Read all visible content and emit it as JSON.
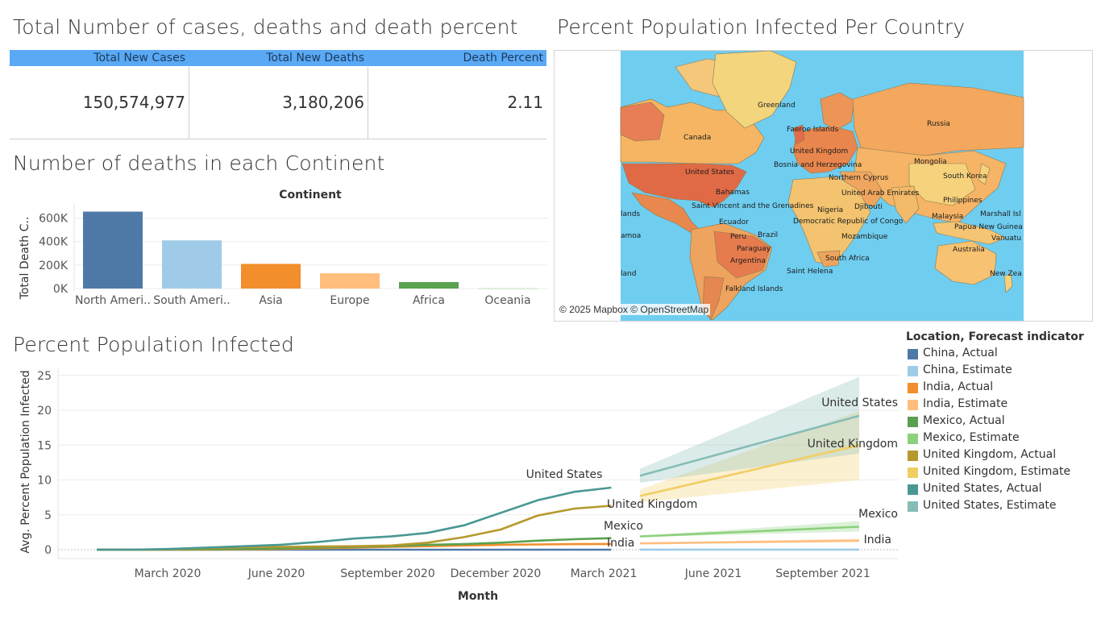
{
  "kpi": {
    "title": "Total Number of cases, deaths and death percent",
    "headers": [
      "Total New Cases",
      "Total New Deaths",
      "Death Percent"
    ],
    "values": [
      "150,574,977",
      "3,180,206",
      "2.11"
    ],
    "header_color": "#5aa9f5"
  },
  "map": {
    "title": "Percent Population Infected Per Country",
    "credit": "© 2025 Mapbox © OpenStreetMap",
    "ocean_color": "#6fcdf0",
    "labels": [
      "Greenland",
      "Russia",
      "Faeroe Islands",
      "Canada",
      "United Kingdom",
      "Mongolia",
      "Bosnia and Herzegovina",
      "United States",
      "Northern Cyprus",
      "South Korea",
      "Bahamas",
      "United Arab Emirates",
      "Philippines",
      "Saint Vincent and the Grenadines",
      "Nigeria",
      "Djibouti",
      "lands",
      "Marshall Isl",
      "Ecuador",
      "Democratic Republic of Congo",
      "Malaysia",
      "Papua New Guinea",
      "Peru",
      "Brazil",
      "amoa",
      "Mozambique",
      "Vanuatu",
      "Paraguay",
      "Australia",
      "Argentina",
      "South Africa",
      "Saint Helena",
      "land",
      "New Zea",
      "Falkland Islands"
    ]
  },
  "continent": {
    "title": "Number of deaths in each Continent",
    "header": "Continent",
    "ylabel": "Total Death C..",
    "tick_labels": [
      "0K",
      "200K",
      "400K",
      "600K"
    ],
    "category_labels": [
      "North Ameri..",
      "South Ameri..",
      "Asia",
      "Europe",
      "Africa",
      "Oceania"
    ]
  },
  "infected": {
    "title": "Percent Population Infected",
    "ylabel": "Avg. Percent Population Infected",
    "xlabel": "Month",
    "y_ticks": [
      "0",
      "5",
      "10",
      "15",
      "20",
      "25"
    ],
    "x_ticks": [
      "March 2020",
      "June 2020",
      "September 2020",
      "December 2020",
      "March 2021",
      "June 2021",
      "September 2021"
    ],
    "line_labels": [
      "United States",
      "United Kingdom",
      "Mexico",
      "India",
      "United States",
      "United Kingdom",
      "Mexico",
      "India"
    ]
  },
  "legend": {
    "title": "Location, Forecast indicator",
    "items": [
      {
        "label": "China, Actual",
        "color": "#4e79a7"
      },
      {
        "label": "China, Estimate",
        "color": "#a0cbe8"
      },
      {
        "label": "India, Actual",
        "color": "#f28e2b"
      },
      {
        "label": "India, Estimate",
        "color": "#ffbe7d"
      },
      {
        "label": "Mexico, Actual",
        "color": "#59a14f"
      },
      {
        "label": "Mexico, Estimate",
        "color": "#8cd17d"
      },
      {
        "label": "United Kingdom, Actual",
        "color": "#b6992d"
      },
      {
        "label": "United Kingdom, Estimate",
        "color": "#f1ce63"
      },
      {
        "label": "United States, Actual",
        "color": "#499894"
      },
      {
        "label": "United States, Estimate",
        "color": "#86bcb6"
      }
    ]
  },
  "chart_data": [
    {
      "type": "bar",
      "title": "Number of deaths in each Continent",
      "xlabel": "Continent",
      "ylabel": "Total Death C..",
      "categories": [
        "North America",
        "South America",
        "Asia",
        "Europe",
        "Africa",
        "Oceania"
      ],
      "values": [
        655000,
        410000,
        210000,
        130000,
        55000,
        1000
      ],
      "colors": [
        "#4e79a7",
        "#a0cbe8",
        "#f28e2b",
        "#ffbe7d",
        "#59a14f",
        "#8cd17d"
      ],
      "ylim": [
        0,
        700000
      ],
      "grid": true
    },
    {
      "type": "line",
      "title": "Percent Population Infected",
      "xlabel": "Month",
      "ylabel": "Avg. Percent Population Infected",
      "ylim": [
        0,
        26
      ],
      "x_actual": [
        "Jan 2020",
        "Feb 2020",
        "Mar 2020",
        "Apr 2020",
        "May 2020",
        "Jun 2020",
        "Jul 2020",
        "Aug 2020",
        "Sep 2020",
        "Oct 2020",
        "Nov 2020",
        "Dec 2020",
        "Jan 2021",
        "Feb 2021",
        "Mar 2021"
      ],
      "x_estimate": [
        "Apr 2021",
        "Oct 2021"
      ],
      "series": [
        {
          "name": "China, Actual",
          "values": [
            0,
            0,
            0,
            0,
            0,
            0,
            0,
            0,
            0,
            0,
            0,
            0,
            0,
            0,
            0
          ]
        },
        {
          "name": "India, Actual",
          "values": [
            0,
            0,
            0,
            0.01,
            0.05,
            0.1,
            0.2,
            0.3,
            0.4,
            0.5,
            0.6,
            0.7,
            0.75,
            0.8,
            0.82
          ]
        },
        {
          "name": "Mexico, Actual",
          "values": [
            0,
            0,
            0,
            0.05,
            0.1,
            0.2,
            0.3,
            0.4,
            0.5,
            0.7,
            0.8,
            1.0,
            1.3,
            1.5,
            1.65
          ]
        },
        {
          "name": "United Kingdom, Actual",
          "values": [
            0,
            0,
            0.05,
            0.2,
            0.35,
            0.4,
            0.45,
            0.5,
            0.6,
            1.0,
            1.8,
            2.9,
            4.9,
            5.9,
            6.3
          ]
        },
        {
          "name": "United States, Actual",
          "values": [
            0,
            0,
            0.1,
            0.3,
            0.5,
            0.7,
            1.1,
            1.6,
            1.9,
            2.4,
            3.5,
            5.3,
            7.1,
            8.3,
            8.9
          ]
        },
        {
          "name": "China, Estimate",
          "values": [
            0.01,
            0.01
          ]
        },
        {
          "name": "India, Estimate",
          "values": [
            0.9,
            1.3
          ],
          "band": [
            [
              0.8,
              1.0
            ],
            [
              1.1,
              1.6
            ]
          ]
        },
        {
          "name": "Mexico, Estimate",
          "values": [
            1.9,
            3.3
          ],
          "band": [
            [
              1.8,
              2.0
            ],
            [
              2.6,
              4.1
            ]
          ]
        },
        {
          "name": "United Kingdom, Estimate",
          "values": [
            7.7,
            15.0
          ],
          "band": [
            [
              6.8,
              8.6
            ],
            [
              10.0,
              19.9
            ]
          ]
        },
        {
          "name": "United States, Estimate",
          "values": [
            10.6,
            19.2
          ],
          "band": [
            [
              9.6,
              11.6
            ],
            [
              13.8,
              24.8
            ]
          ]
        }
      ],
      "grid": true
    }
  ]
}
